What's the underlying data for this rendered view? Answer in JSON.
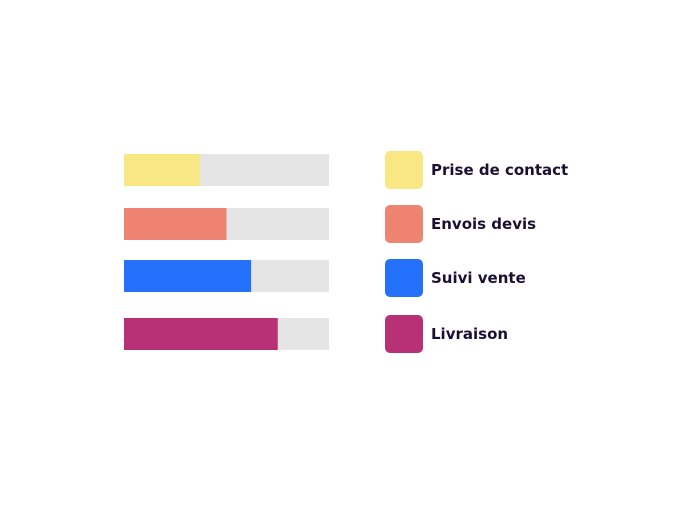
{
  "chart_data": {
    "type": "bar",
    "orientation": "horizontal",
    "categories": [
      "Prise de contact",
      "Envois devis",
      "Suivi vente",
      "Livraison"
    ],
    "values": [
      37,
      50,
      62,
      75
    ],
    "xlim": [
      0,
      100
    ],
    "grid": false,
    "legend_position": "right",
    "track_color": "#e5e5e5",
    "colors": [
      "#f9e784",
      "#ef8372",
      "#2472fc",
      "#b83177"
    ],
    "title": "",
    "xlabel": "",
    "ylabel": ""
  }
}
